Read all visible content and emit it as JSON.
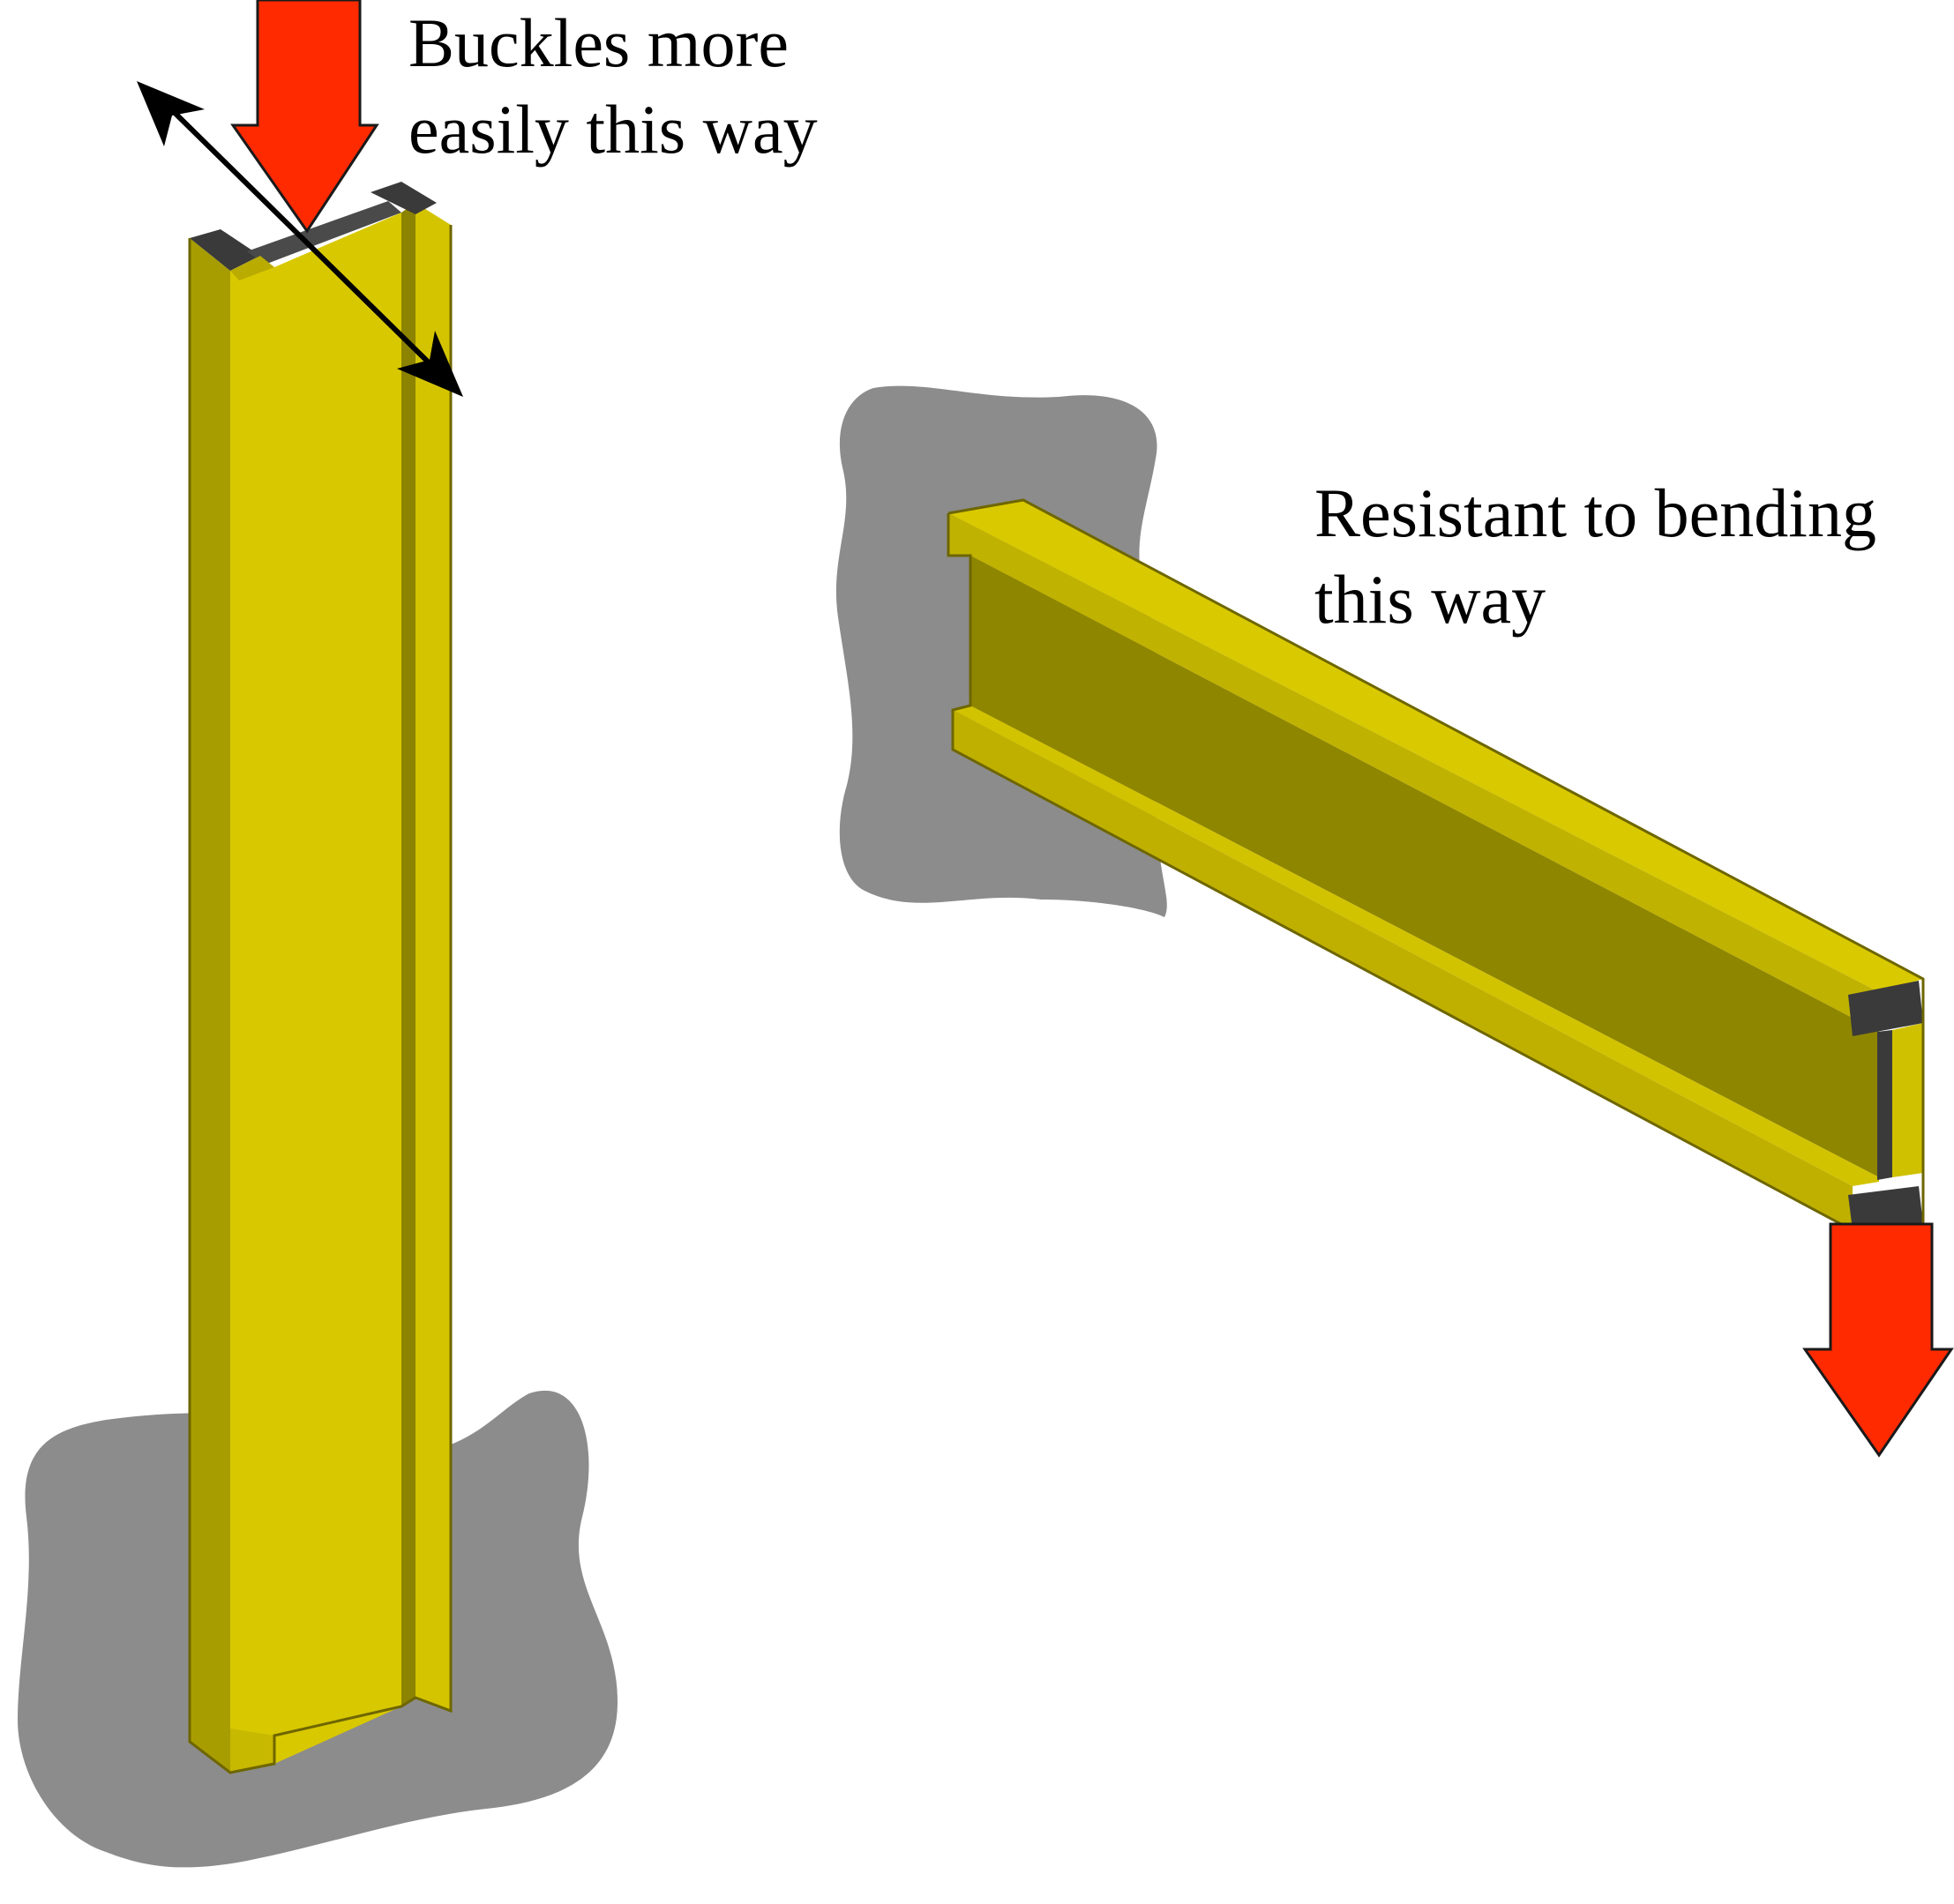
{
  "labels": {
    "column_annotation": {
      "line1": "Buckles more",
      "line2": "easily this way"
    },
    "beam_annotation": {
      "line1": "Resistant to bending",
      "line2": "this way"
    }
  },
  "colors": {
    "beam_face_light": "#d9c900",
    "beam_face_mid": "#c0b200",
    "beam_face_dark": "#8f8600",
    "beam_edge": "#6e6600",
    "section_cap": "#3a3a3a",
    "support_shadow": "#8c8c8c",
    "load_arrow": "#ff2a00",
    "direction_arrow": "#000000",
    "background": "#ffffff"
  },
  "icons": {
    "load_arrow": "down-arrow-icon",
    "buckling_direction": "double-headed-arrow-icon"
  }
}
